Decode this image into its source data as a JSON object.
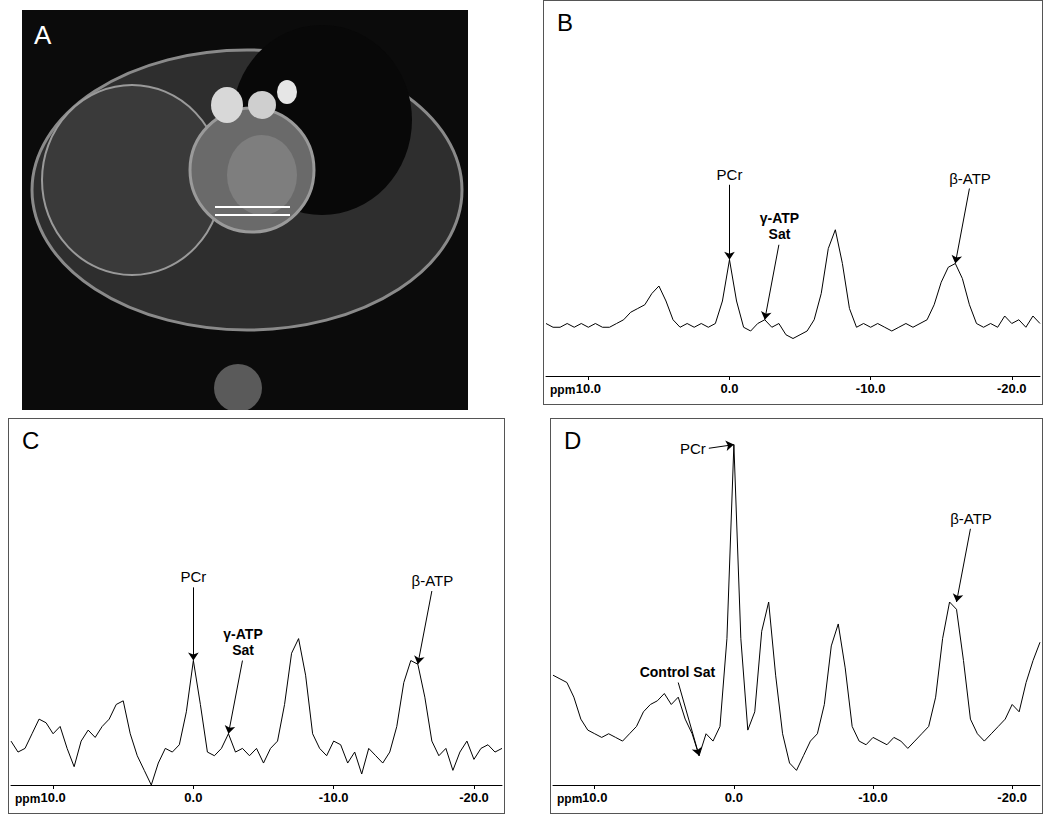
{
  "image_panel": {
    "label": "A"
  },
  "chart_data": [
    {
      "type": "line",
      "title": "B",
      "xlabel": "ppm",
      "color": "#000000",
      "grid": false,
      "tick_labels": "x",
      "xlim": [
        13,
        -22
      ],
      "ylim": [
        0,
        100
      ],
      "xticks": [
        {
          "value": 10,
          "label": "10.0"
        },
        {
          "value": 0,
          "label": "0.0"
        },
        {
          "value": -10,
          "label": "-10.0"
        },
        {
          "value": -20,
          "label": "-20.0"
        }
      ],
      "x": [
        13,
        12.5,
        12,
        11.5,
        11,
        10.5,
        10,
        9.5,
        9,
        8.5,
        8,
        7.5,
        7,
        6.5,
        6,
        5.5,
        5,
        4.5,
        4,
        3.5,
        3,
        2.5,
        2,
        1.5,
        1,
        0.5,
        0,
        -0.5,
        -1,
        -1.5,
        -2,
        -2.5,
        -3,
        -3.5,
        -4,
        -4.5,
        -5,
        -5.5,
        -6,
        -6.5,
        -7,
        -7.5,
        -8,
        -8.5,
        -9,
        -9.5,
        -10,
        -10.5,
        -11,
        -11.5,
        -12,
        -12.5,
        -13,
        -13.5,
        -14,
        -14.5,
        -15,
        -15.5,
        -16,
        -16.5,
        -17,
        -17.5,
        -18,
        -18.5,
        -19,
        -19.5,
        -20,
        -20.5,
        -21,
        -21.5,
        -22
      ],
      "values": [
        14,
        13,
        13,
        14,
        13,
        14,
        13,
        14,
        13,
        13,
        14,
        15,
        17,
        18,
        19,
        22,
        24,
        20,
        15,
        13,
        14,
        13,
        14,
        13,
        14,
        20,
        31,
        20,
        13,
        12,
        14,
        15,
        13,
        14,
        11,
        10,
        11,
        12,
        15,
        22,
        34,
        39,
        30,
        18,
        13,
        14,
        13,
        14,
        13,
        12,
        13,
        14,
        13,
        14,
        15,
        19,
        25,
        29,
        30,
        26,
        19,
        14,
        13,
        14,
        13,
        16,
        14,
        15,
        13,
        16,
        14
      ],
      "annotations": [
        {
          "text": "PCr",
          "x": 0,
          "y": 31
        },
        {
          "text": "γ-ATP\nSat",
          "x": -2.5,
          "y": 15
        },
        {
          "text": "β-ATP",
          "x": -16,
          "y": 30
        }
      ]
    },
    {
      "type": "line",
      "title": "C",
      "xlabel": "ppm",
      "color": "#000000",
      "grid": false,
      "tick_labels": "x",
      "xlim": [
        13,
        -22
      ],
      "ylim": [
        0,
        100
      ],
      "xticks": [
        {
          "value": 10,
          "label": "10.0"
        },
        {
          "value": 0,
          "label": "0.0"
        },
        {
          "value": -10,
          "label": "-10.0"
        },
        {
          "value": -20,
          "label": "-20.0"
        }
      ],
      "x": [
        13,
        12.5,
        12,
        11.5,
        11,
        10.5,
        10,
        9.5,
        9,
        8.5,
        8,
        7.5,
        7,
        6.5,
        6,
        5.5,
        5,
        4.5,
        4,
        3.5,
        3,
        2.5,
        2,
        1.5,
        1,
        0.5,
        0,
        -0.5,
        -1,
        -1.5,
        -2,
        -2.5,
        -3,
        -3.5,
        -4,
        -4.5,
        -5,
        -5.5,
        -6,
        -6.5,
        -7,
        -7.5,
        -8,
        -8.5,
        -9,
        -9.5,
        -10,
        -10.5,
        -11,
        -11.5,
        -12,
        -12.5,
        -13,
        -13.5,
        -14,
        -14.5,
        -15,
        -15.5,
        -16,
        -16.5,
        -17,
        -17.5,
        -18,
        -18.5,
        -19,
        -19.5,
        -20,
        -20.5,
        -21,
        -21.5,
        -22
      ],
      "values": [
        12,
        9,
        10,
        14,
        18,
        17,
        14,
        16,
        10,
        5,
        12,
        15,
        13,
        16,
        18,
        22,
        23,
        14,
        8,
        4,
        0,
        6,
        10,
        9,
        11,
        20,
        34,
        22,
        9,
        8,
        10,
        14,
        9,
        10,
        8,
        10,
        6,
        10,
        12,
        22,
        36,
        40,
        30,
        14,
        10,
        8,
        12,
        11,
        6,
        9,
        3,
        10,
        8,
        6,
        9,
        16,
        28,
        34,
        33,
        24,
        12,
        8,
        10,
        4,
        9,
        12,
        7,
        10,
        11,
        9,
        10
      ],
      "annotations": [
        {
          "text": "PCr",
          "x": 0,
          "y": 34
        },
        {
          "text": "γ-ATP\nSat",
          "x": -2.5,
          "y": 14
        },
        {
          "text": "β-ATP",
          "x": -16,
          "y": 33
        }
      ]
    },
    {
      "type": "line",
      "title": "D",
      "xlabel": "ppm",
      "color": "#000000",
      "grid": false,
      "tick_labels": "x",
      "xlim": [
        13,
        -22
      ],
      "ylim": [
        0,
        100
      ],
      "xticks": [
        {
          "value": 10,
          "label": "10.0"
        },
        {
          "value": 0,
          "label": "0.0"
        },
        {
          "value": -10,
          "label": "-10.0"
        },
        {
          "value": -20,
          "label": "-20.0"
        }
      ],
      "x": [
        13,
        12.5,
        12,
        11.5,
        11,
        10.5,
        10,
        9.5,
        9,
        8.5,
        8,
        7.5,
        7,
        6.5,
        6,
        5.5,
        5,
        4.5,
        4,
        3.5,
        3,
        2.5,
        2,
        1.5,
        1,
        0.5,
        0,
        -0.5,
        -1,
        -1.5,
        -2,
        -2.5,
        -3,
        -3.5,
        -4,
        -4.5,
        -5,
        -5.5,
        -6,
        -6.5,
        -7,
        -7.5,
        -8,
        -8.5,
        -9,
        -9.5,
        -10,
        -10.5,
        -11,
        -11.5,
        -12,
        -12.5,
        -13,
        -13.5,
        -14,
        -14.5,
        -15,
        -15.5,
        -16,
        -16.5,
        -17,
        -17.5,
        -18,
        -18.5,
        -19,
        -19.5,
        -20,
        -20.5,
        -21,
        -21.5,
        -22
      ],
      "values": [
        30,
        29,
        28,
        24,
        18,
        15,
        14,
        13,
        14,
        13,
        12,
        14,
        16,
        20,
        22,
        23,
        25,
        22,
        24,
        18,
        14,
        8,
        14,
        12,
        16,
        40,
        93,
        40,
        15,
        20,
        42,
        50,
        30,
        14,
        6,
        4,
        8,
        12,
        14,
        22,
        38,
        44,
        32,
        16,
        12,
        11,
        13,
        12,
        11,
        13,
        12,
        10,
        12,
        14,
        16,
        24,
        40,
        50,
        48,
        34,
        18,
        14,
        12,
        14,
        16,
        18,
        22,
        20,
        28,
        34,
        39
      ],
      "annotations": [
        {
          "text": "PCr",
          "x": 0,
          "y": 93
        },
        {
          "text": "Control Sat",
          "x": 2.5,
          "y": 8
        },
        {
          "text": "β-ATP",
          "x": -16,
          "y": 50
        }
      ]
    }
  ]
}
